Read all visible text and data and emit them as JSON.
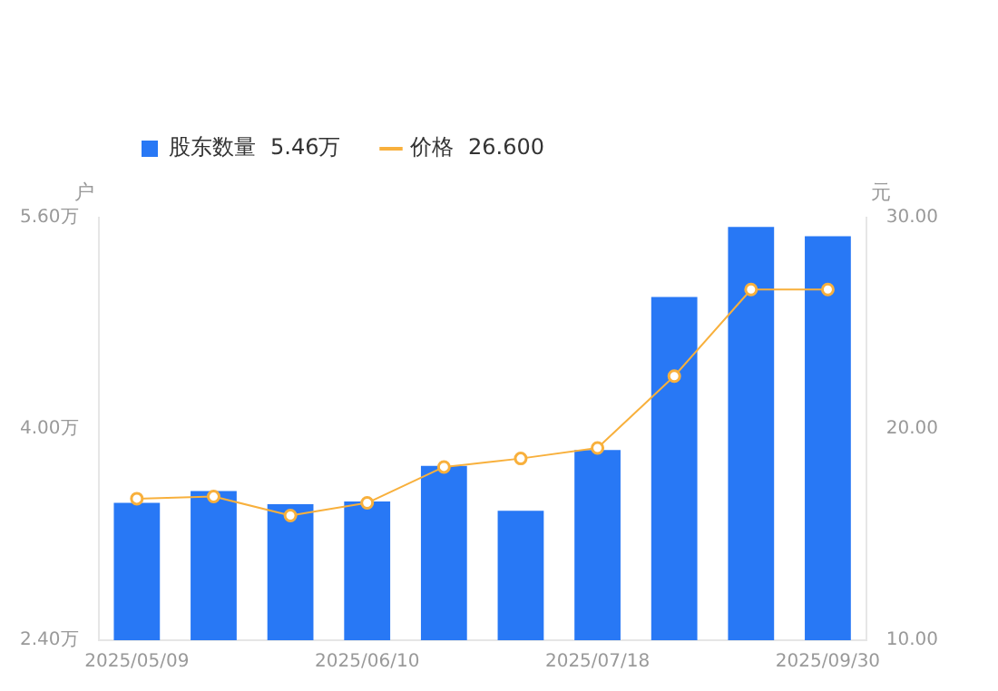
{
  "chart_data": {
    "type": "bar",
    "categories": [
      "2025/05/09",
      null,
      null,
      "2025/06/10",
      null,
      null,
      "2025/07/18",
      null,
      null,
      "2025/09/30"
    ],
    "series": [
      {
        "name": "股东数量",
        "color": "#2878f5",
        "values": [
          3.44,
          3.53,
          3.43,
          3.45,
          3.72,
          3.38,
          3.84,
          5.0,
          5.53,
          5.46
        ]
      },
      {
        "name": "价格",
        "type": "line",
        "axis": "y2",
        "color": "#f8b03c",
        "marker": "circle",
        "values": [
          16.7,
          16.8,
          15.9,
          16.5,
          18.2,
          18.6,
          19.1,
          22.5,
          26.6,
          26.6
        ]
      }
    ],
    "ylabel": "户",
    "y2label": "元",
    "ylim": [
      2.4,
      5.6
    ],
    "yticks": [
      {
        "value": 2.4,
        "label": "2.40万"
      },
      {
        "value": 4.0,
        "label": "4.00万"
      },
      {
        "value": 5.6,
        "label": "5.60万"
      }
    ],
    "y2lim": [
      10,
      30
    ],
    "y2ticks": [
      {
        "value": 10,
        "label": "10.00"
      },
      {
        "value": 20,
        "label": "20.00"
      },
      {
        "value": 30,
        "label": "30.00"
      }
    ],
    "annotations": [
      "5.46万",
      "26.600"
    ],
    "legend": "top left",
    "grid": false
  }
}
